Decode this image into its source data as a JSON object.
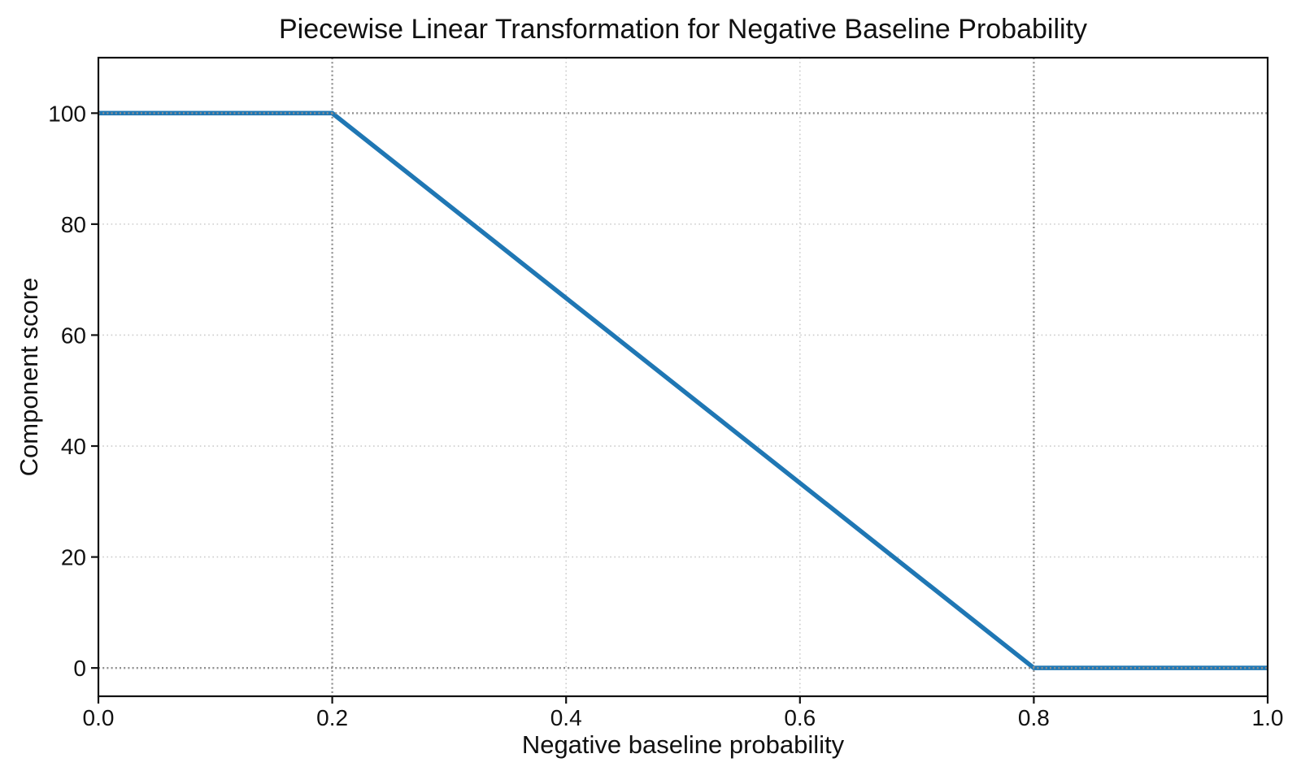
{
  "figure": {
    "background": "#ffffff"
  },
  "chart_data": {
    "type": "line",
    "title": "Piecewise Linear Transformation for Negative Baseline Probability",
    "xlabel": "Negative baseline probability",
    "ylabel": "Component score",
    "xlim": [
      0.0,
      1.0
    ],
    "ylim": [
      -5.1,
      110
    ],
    "xticks": [
      0.0,
      0.2,
      0.4,
      0.6,
      0.8,
      1.0
    ],
    "xtick_labels": [
      "0.0",
      "0.2",
      "0.4",
      "0.6",
      "0.8",
      "1.0"
    ],
    "yticks": [
      0,
      20,
      40,
      60,
      80,
      100
    ],
    "ytick_labels": [
      "0",
      "20",
      "40",
      "60",
      "80",
      "100"
    ],
    "grid": {
      "x_values": [
        0.4,
        0.6
      ],
      "y_values": [
        20,
        40,
        60,
        80
      ],
      "color": "#cccccc",
      "style": "dotted"
    },
    "reference_lines": {
      "x_values": [
        0.2,
        0.8
      ],
      "y_values": [
        0,
        100
      ],
      "color": "#8f8f8f",
      "style": "dotted"
    },
    "series": [
      {
        "name": "Component score",
        "color": "#1f77b4",
        "linewidth": 5.5,
        "points": [
          {
            "x": 0.0,
            "y": 100
          },
          {
            "x": 0.2,
            "y": 100
          },
          {
            "x": 0.8,
            "y": 0
          },
          {
            "x": 1.0,
            "y": 0
          }
        ]
      }
    ],
    "legend": null,
    "axis_color": "#111111"
  }
}
